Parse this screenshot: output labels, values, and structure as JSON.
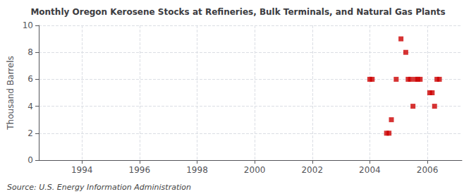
{
  "chart_data": {
    "type": "scatter",
    "title": "Monthly Oregon Kerosene Stocks at Refineries, Bulk Terminals, and Natural Gas Plants",
    "ylabel": "Thousand Barrels",
    "annotations": [
      "Source: U.S. Energy Information Administration"
    ],
    "x": [
      2004.0,
      2004.083,
      2004.583,
      2004.667,
      2004.75,
      2004.917,
      2005.083,
      2005.25,
      2005.333,
      2005.417,
      2005.5,
      2005.583,
      2005.667,
      2005.75,
      2006.083,
      2006.167,
      2006.25,
      2006.333,
      2006.417
    ],
    "values": [
      6,
      6,
      2,
      2,
      3,
      6,
      9,
      8,
      6,
      6,
      4,
      6,
      6,
      6,
      5,
      5,
      4,
      6,
      6
    ],
    "color": "#cc0000",
    "marker": "square",
    "xlim": [
      1992.5,
      2007.2
    ],
    "xticks": [
      1994,
      1996,
      1998,
      2000,
      2002,
      2004,
      2006
    ],
    "ylim": [
      0,
      10
    ],
    "yticks": [
      0,
      2,
      4,
      6,
      8,
      10
    ],
    "grid": true
  }
}
